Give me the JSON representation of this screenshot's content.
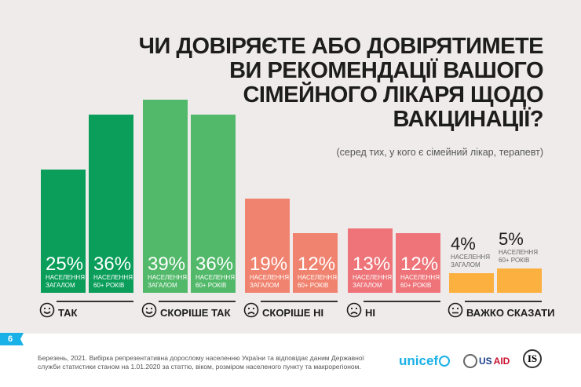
{
  "chart_data": {
    "type": "bar",
    "title": "ЧИ ДОВІРЯЄТЕ АБО ДОВІРЯТИМЕТЕ ВИ РЕКОМЕНДАЦІЇ ВАШОГО СІМЕЙНОГО ЛІКАРЯ ЩОДО ВАКЦИНАЦІЇ?",
    "subtitle": "(серед тих, у кого є сімейний лікар, терапевт)",
    "categories": [
      {
        "name": "ТАК",
        "face": "smile",
        "color": "#0a9e5a"
      },
      {
        "name": "СКОРІШЕ ТАК",
        "face": "smile",
        "color": "#52b96a"
      },
      {
        "name": "СКОРІШЕ НІ",
        "face": "frown",
        "color": "#f0836f"
      },
      {
        "name": "НІ",
        "face": "frown",
        "color": "#ee7479"
      },
      {
        "name": "ВАЖКО СКАЗАТИ",
        "face": "neutral",
        "color": "#fbb040"
      }
    ],
    "series": [
      {
        "name": "НАСЕЛЕННЯ ЗАГАЛОМ",
        "values": [
          25,
          39,
          19,
          13,
          4
        ]
      },
      {
        "name": "НАСЕЛЕННЯ 60+ РОКІВ",
        "values": [
          36,
          36,
          12,
          12,
          5
        ]
      }
    ],
    "unit": "%",
    "grid": false
  },
  "footer": {
    "page_number": "6",
    "note": "Березень, 2021. Вибірка репрезентативна дорослому населенню України та відповідає даним Державної служби статистики станом на 1.01.2020 за статтю, віком, розміром населеного пункту та макрорегіоном.",
    "logos": [
      "unicef",
      "USAID",
      "IS"
    ]
  },
  "colors": {
    "background": "#efebeb",
    "page_badge": "#1ab0e8"
  }
}
